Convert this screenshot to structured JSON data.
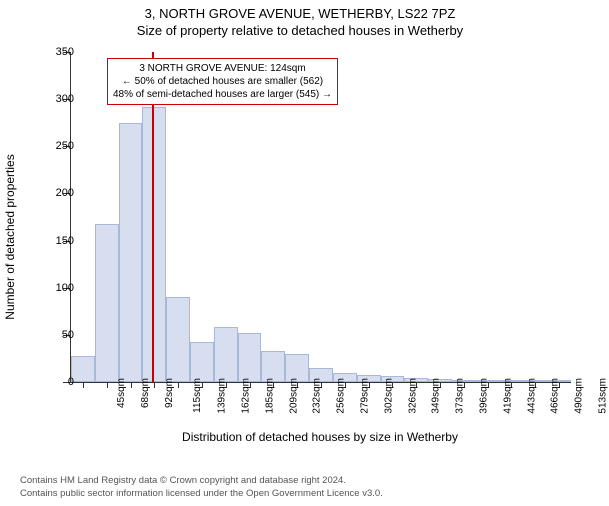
{
  "title_main": "3, NORTH GROVE AVENUE, WETHERBY, LS22 7PZ",
  "title_sub": "Size of property relative to detached houses in Wetherby",
  "y_label": "Number of detached properties",
  "x_label": "Distribution of detached houses by size in Wetherby",
  "chart": {
    "type": "histogram",
    "ylim": [
      0,
      350
    ],
    "ytick_step": 50,
    "yticks": [
      0,
      50,
      100,
      150,
      200,
      250,
      300,
      350
    ],
    "x_categories": [
      "45sqm",
      "68sqm",
      "92sqm",
      "115sqm",
      "139sqm",
      "162sqm",
      "185sqm",
      "209sqm",
      "232sqm",
      "256sqm",
      "279sqm",
      "302sqm",
      "326sqm",
      "349sqm",
      "373sqm",
      "396sqm",
      "419sqm",
      "443sqm",
      "466sqm",
      "490sqm",
      "513sqm"
    ],
    "values": [
      28,
      168,
      275,
      292,
      90,
      42,
      58,
      52,
      33,
      30,
      15,
      10,
      7,
      6,
      4,
      3,
      2,
      2,
      1,
      1,
      1
    ],
    "bar_fill": "#d6deef",
    "bar_stroke": "#a9b8d6",
    "background_color": "#ffffff",
    "bar_width_ratio": 1.0
  },
  "marker": {
    "position_index": 3.4,
    "color": "#cc0000"
  },
  "annotation": {
    "lines": [
      "3 NORTH GROVE AVENUE: 124sqm",
      "← 50% of detached houses are smaller (562)",
      "48% of semi-detached houses are larger (545) →"
    ],
    "border_color": "#cc0000",
    "text_color": "#000000"
  },
  "footer_lines": [
    "Contains HM Land Registry data © Crown copyright and database right 2024.",
    "Contains public sector information licensed under the Open Government Licence v3.0."
  ]
}
